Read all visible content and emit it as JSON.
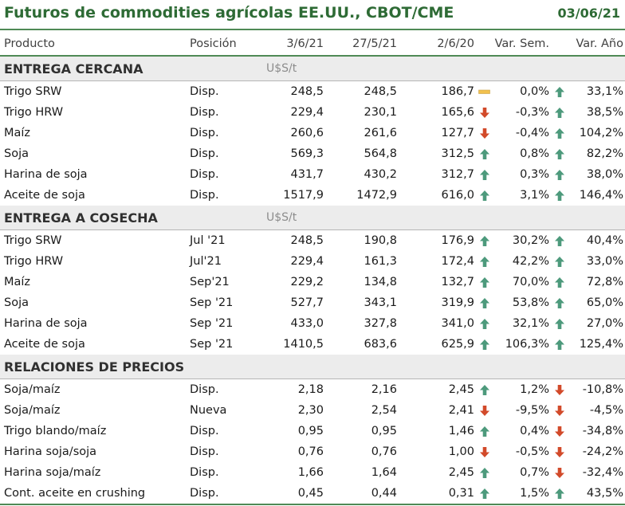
{
  "title": "Futuros de commodities agrícolas EE.UU., CBOT/CME",
  "date": "03/06/21",
  "colors": {
    "up": "#4d9a7c",
    "down": "#d24a2a",
    "flat": "#f2c14e",
    "accent": "#2e6b35"
  },
  "headers": [
    "Producto",
    "Posición",
    "3/6/21",
    "27/5/21",
    "2/6/20",
    "Var. Sem.",
    "Var. Año"
  ],
  "sections": [
    {
      "title": "ENTREGA CERCANA",
      "unit": "U$S/t",
      "rows": [
        {
          "product": "Trigo SRW",
          "position": "Disp.",
          "v1": "248,5",
          "v2": "248,5",
          "v3": "186,7",
          "icon_week": "flat",
          "week": "0,0%",
          "icon_year": "up",
          "year": "33,1%"
        },
        {
          "product": "Trigo HRW",
          "position": "Disp.",
          "v1": "229,4",
          "v2": "230,1",
          "v3": "165,6",
          "icon_week": "down",
          "week": "-0,3%",
          "icon_year": "up",
          "year": "38,5%"
        },
        {
          "product": "Maíz",
          "position": "Disp.",
          "v1": "260,6",
          "v2": "261,6",
          "v3": "127,7",
          "icon_week": "down",
          "week": "-0,4%",
          "icon_year": "up",
          "year": "104,2%"
        },
        {
          "product": "Soja",
          "position": "Disp.",
          "v1": "569,3",
          "v2": "564,8",
          "v3": "312,5",
          "icon_week": "up",
          "week": "0,8%",
          "icon_year": "up",
          "year": "82,2%"
        },
        {
          "product": "Harina de soja",
          "position": "Disp.",
          "v1": "431,7",
          "v2": "430,2",
          "v3": "312,7",
          "icon_week": "up",
          "week": "0,3%",
          "icon_year": "up",
          "year": "38,0%"
        },
        {
          "product": "Aceite de soja",
          "position": "Disp.",
          "v1": "1517,9",
          "v2": "1472,9",
          "v3": "616,0",
          "icon_week": "up",
          "week": "3,1%",
          "icon_year": "up",
          "year": "146,4%"
        }
      ]
    },
    {
      "title": "ENTREGA A COSECHA",
      "unit": "U$S/t",
      "rows": [
        {
          "product": "Trigo SRW",
          "position": "Jul '21",
          "v1": "248,5",
          "v2": "190,8",
          "v3": "176,9",
          "icon_week": "up",
          "week": "30,2%",
          "icon_year": "up",
          "year": "40,4%"
        },
        {
          "product": "Trigo HRW",
          "position": "Jul'21",
          "v1": "229,4",
          "v2": "161,3",
          "v3": "172,4",
          "icon_week": "up",
          "week": "42,2%",
          "icon_year": "up",
          "year": "33,0%"
        },
        {
          "product": "Maíz",
          "position": "Sep'21",
          "v1": "229,2",
          "v2": "134,8",
          "v3": "132,7",
          "icon_week": "up",
          "week": "70,0%",
          "icon_year": "up",
          "year": "72,8%"
        },
        {
          "product": "Soja",
          "position": "Sep '21",
          "v1": "527,7",
          "v2": "343,1",
          "v3": "319,9",
          "icon_week": "up",
          "week": "53,8%",
          "icon_year": "up",
          "year": "65,0%"
        },
        {
          "product": "Harina de soja",
          "position": "Sep '21",
          "v1": "433,0",
          "v2": "327,8",
          "v3": "341,0",
          "icon_week": "up",
          "week": "32,1%",
          "icon_year": "up",
          "year": "27,0%"
        },
        {
          "product": "Aceite de soja",
          "position": "Sep '21",
          "v1": "1410,5",
          "v2": "683,6",
          "v3": "625,9",
          "icon_week": "up",
          "week": "106,3%",
          "icon_year": "up",
          "year": "125,4%"
        }
      ]
    },
    {
      "title": "RELACIONES DE PRECIOS",
      "unit": "",
      "rows": [
        {
          "product": "Soja/maíz",
          "position": "Disp.",
          "v1": "2,18",
          "v2": "2,16",
          "v3": "2,45",
          "icon_week": "up",
          "week": "1,2%",
          "icon_year": "down",
          "year": "-10,8%"
        },
        {
          "product": "Soja/maíz",
          "position": "Nueva",
          "v1": "2,30",
          "v2": "2,54",
          "v3": "2,41",
          "icon_week": "down",
          "week": "-9,5%",
          "icon_year": "down",
          "year": "-4,5%"
        },
        {
          "product": "Trigo blando/maíz",
          "position": "Disp.",
          "v1": "0,95",
          "v2": "0,95",
          "v3": "1,46",
          "icon_week": "up",
          "week": "0,4%",
          "icon_year": "down",
          "year": "-34,8%"
        },
        {
          "product": "Harina soja/soja",
          "position": "Disp.",
          "v1": "0,76",
          "v2": "0,76",
          "v3": "1,00",
          "icon_week": "down",
          "week": "-0,5%",
          "icon_year": "down",
          "year": "-24,2%"
        },
        {
          "product": "Harina soja/maíz",
          "position": "Disp.",
          "v1": "1,66",
          "v2": "1,64",
          "v3": "2,45",
          "icon_week": "up",
          "week": "0,7%",
          "icon_year": "down",
          "year": "-32,4%"
        },
        {
          "product": "Cont. aceite en crushing",
          "position": "Disp.",
          "v1": "0,45",
          "v2": "0,44",
          "v3": "0,31",
          "icon_week": "up",
          "week": "1,5%",
          "icon_year": "up",
          "year": "43,5%"
        }
      ]
    }
  ]
}
